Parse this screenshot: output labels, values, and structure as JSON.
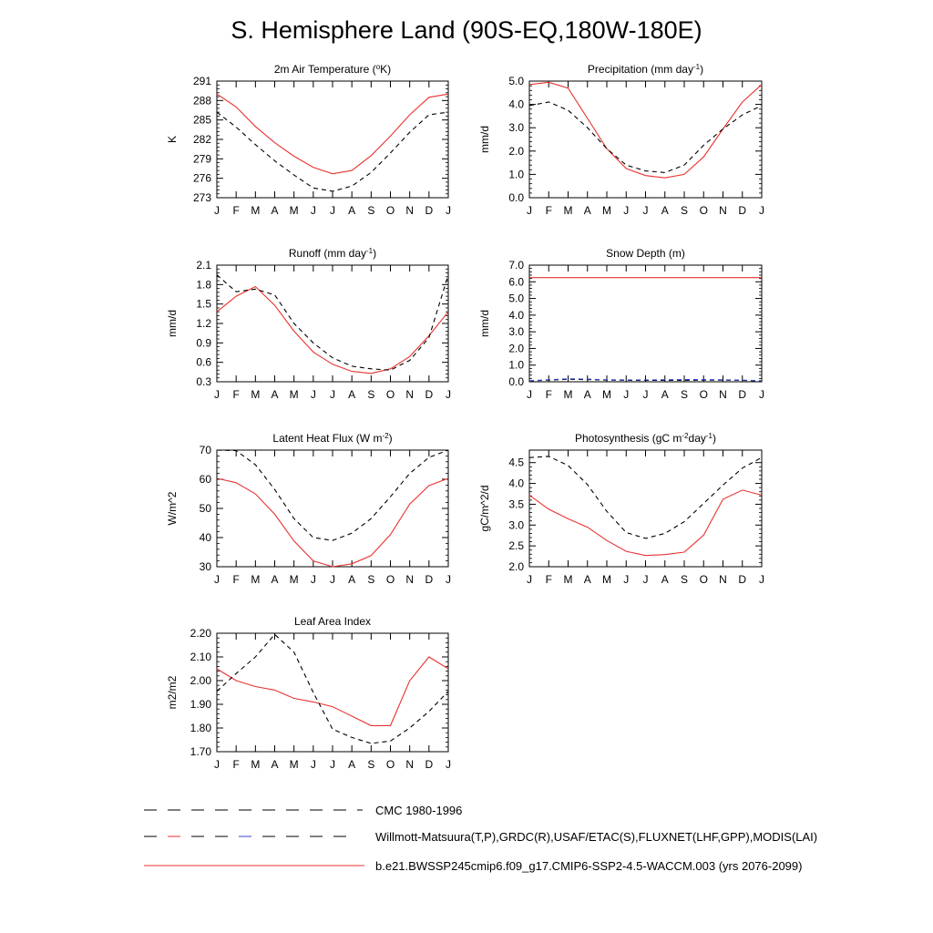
{
  "title": "S. Hemisphere Land (90S-EQ,180W-180E)",
  "months": [
    "J",
    "F",
    "M",
    "A",
    "M",
    "J",
    "J",
    "A",
    "S",
    "O",
    "N",
    "D",
    "J"
  ],
  "colors": {
    "model": "#e8322f",
    "obs": "#000000",
    "obs_blue": "#3344cc"
  },
  "legend": [
    {
      "label": "CMC 1980-1996",
      "style": "dashed-black"
    },
    {
      "label": "Willmott-Matsuura(T,P),GRDC(R),USAF/ETAC(S),FLUXNET(LHF,GPP),MODIS(LAI)",
      "style": "dashed-multicolor"
    },
    {
      "label": "b.e21.BWSSP245cmip6.f09_g17.CMIP6-SSP2-4.5-WACCM.003 (yrs 2076-2099)",
      "style": "solid-red"
    }
  ],
  "chart_data": [
    {
      "type": "line",
      "title_parts": [
        "2m Air Temperature (",
        "o",
        "K)"
      ],
      "ylabel": "K",
      "ylim": [
        273,
        291
      ],
      "yticks": [
        "273",
        "276",
        "279",
        "282",
        "285",
        "288",
        "291"
      ],
      "categories": [
        "J",
        "F",
        "M",
        "A",
        "M",
        "J",
        "J",
        "A",
        "S",
        "O",
        "N",
        "D",
        "J"
      ],
      "series": [
        {
          "role": "model",
          "values": [
            289.0,
            287.0,
            284.0,
            281.5,
            279.4,
            277.7,
            276.7,
            277.2,
            279.5,
            282.5,
            285.8,
            288.5,
            289.0
          ]
        },
        {
          "role": "obs",
          "values": [
            286.2,
            283.9,
            281.2,
            278.7,
            276.5,
            274.5,
            274.0,
            274.8,
            276.9,
            279.9,
            283.1,
            285.8,
            286.2
          ]
        }
      ]
    },
    {
      "type": "line",
      "title_parts": [
        "Precipitation (mm day",
        "-1",
        ")"
      ],
      "ylabel": "mm/d",
      "ylim": [
        0,
        5
      ],
      "yticks": [
        "0.0",
        "1.0",
        "2.0",
        "3.0",
        "4.0",
        "5.0"
      ],
      "categories": [
        "J",
        "F",
        "M",
        "A",
        "M",
        "J",
        "J",
        "A",
        "S",
        "O",
        "N",
        "D",
        "J"
      ],
      "series": [
        {
          "role": "model",
          "values": [
            4.85,
            4.95,
            4.7,
            3.4,
            2.1,
            1.25,
            0.95,
            0.85,
            1.0,
            1.75,
            2.95,
            4.1,
            4.85
          ]
        },
        {
          "role": "obs",
          "values": [
            3.95,
            4.1,
            3.75,
            3.0,
            2.1,
            1.4,
            1.15,
            1.08,
            1.4,
            2.25,
            2.95,
            3.55,
            3.95
          ]
        }
      ]
    },
    {
      "type": "line",
      "title_parts": [
        "Runoff (mm day",
        "-1",
        ")"
      ],
      "ylabel": "mm/d",
      "ylim": [
        0.3,
        2.1
      ],
      "yticks": [
        "0.3",
        "0.6",
        "0.9",
        "1.2",
        "1.5",
        "1.8",
        "2.1"
      ],
      "categories": [
        "J",
        "F",
        "M",
        "A",
        "M",
        "J",
        "J",
        "A",
        "S",
        "O",
        "N",
        "D",
        "J"
      ],
      "series": [
        {
          "role": "model",
          "values": [
            1.38,
            1.62,
            1.77,
            1.48,
            1.08,
            0.76,
            0.57,
            0.46,
            0.43,
            0.5,
            0.69,
            1.01,
            1.38
          ]
        },
        {
          "role": "obs",
          "values": [
            1.95,
            1.69,
            1.73,
            1.64,
            1.2,
            0.9,
            0.67,
            0.54,
            0.5,
            0.48,
            0.63,
            0.98,
            1.95
          ]
        }
      ]
    },
    {
      "type": "line",
      "title_parts": [
        "Snow Depth (m)"
      ],
      "ylabel": "mm/d",
      "ylim": [
        0,
        7
      ],
      "yticks": [
        "0.0",
        "1.0",
        "2.0",
        "3.0",
        "4.0",
        "5.0",
        "6.0",
        "7.0"
      ],
      "categories": [
        "J",
        "F",
        "M",
        "A",
        "M",
        "J",
        "J",
        "A",
        "S",
        "O",
        "N",
        "D",
        "J"
      ],
      "series": [
        {
          "role": "model",
          "values": [
            6.25,
            6.25,
            6.25,
            6.25,
            6.25,
            6.25,
            6.25,
            6.25,
            6.25,
            6.25,
            6.25,
            6.25,
            6.25
          ]
        },
        {
          "role": "obs",
          "values": [
            0.05,
            0.1,
            0.15,
            0.13,
            0.1,
            0.09,
            0.08,
            0.08,
            0.09,
            0.1,
            0.1,
            0.08,
            0.05
          ]
        },
        {
          "role": "obs_blue",
          "values": [
            0.06,
            0.12,
            0.18,
            0.16,
            0.12,
            0.11,
            0.11,
            0.12,
            0.13,
            0.13,
            0.12,
            0.1,
            0.06
          ]
        }
      ]
    },
    {
      "type": "line",
      "title_parts": [
        "Latent Heat Flux (W m",
        "-2",
        ")"
      ],
      "ylabel": "W/m^2",
      "ylim": [
        30,
        70
      ],
      "yticks": [
        "30",
        "40",
        "50",
        "60",
        "70"
      ],
      "categories": [
        "J",
        "F",
        "M",
        "A",
        "M",
        "J",
        "J",
        "A",
        "S",
        "O",
        "N",
        "D",
        "J"
      ],
      "series": [
        {
          "role": "model",
          "values": [
            60.3,
            58.8,
            55.0,
            48.0,
            38.8,
            32.0,
            30.0,
            31.0,
            33.8,
            41.0,
            51.5,
            57.8,
            60.3
          ]
        },
        {
          "role": "obs",
          "values": [
            70.0,
            69.8,
            65.0,
            56.5,
            46.5,
            40.0,
            39.0,
            41.5,
            46.5,
            54.0,
            62.0,
            67.5,
            70.0
          ]
        }
      ]
    },
    {
      "type": "line",
      "title_parts": [
        "Photosynthesis (gC m",
        "-2",
        "day",
        "-1",
        ")"
      ],
      "ylabel": "gC/m^2/d",
      "ylim": [
        2.0,
        4.8
      ],
      "yticks": [
        "2.0",
        "2.5",
        "3.0",
        "3.5",
        "4.0",
        "4.5"
      ],
      "categories": [
        "J",
        "F",
        "M",
        "A",
        "M",
        "J",
        "J",
        "A",
        "S",
        "O",
        "N",
        "D",
        "J"
      ],
      "series": [
        {
          "role": "model",
          "values": [
            3.72,
            3.38,
            3.15,
            2.95,
            2.63,
            2.37,
            2.27,
            2.29,
            2.35,
            2.76,
            3.62,
            3.84,
            3.72
          ]
        },
        {
          "role": "obs",
          "values": [
            4.62,
            4.65,
            4.43,
            3.97,
            3.33,
            2.82,
            2.68,
            2.8,
            3.08,
            3.52,
            3.96,
            4.37,
            4.62
          ]
        }
      ]
    },
    {
      "type": "line",
      "title_parts": [
        "Leaf Area Index"
      ],
      "ylabel": "m2/m2",
      "ylim": [
        1.7,
        2.2
      ],
      "yticks": [
        "1.70",
        "1.80",
        "1.90",
        "2.00",
        "2.10",
        "2.20"
      ],
      "categories": [
        "J",
        "F",
        "M",
        "A",
        "M",
        "J",
        "J",
        "A",
        "S",
        "O",
        "N",
        "D",
        "J"
      ],
      "series": [
        {
          "role": "model",
          "values": [
            2.05,
            2.0,
            1.975,
            1.96,
            1.925,
            1.91,
            1.89,
            1.85,
            1.81,
            1.81,
            2.0,
            2.1,
            2.05
          ]
        },
        {
          "role": "obs",
          "values": [
            1.955,
            2.03,
            2.1,
            2.195,
            2.12,
            1.95,
            1.795,
            1.76,
            1.735,
            1.745,
            1.8,
            1.87,
            1.955
          ]
        }
      ]
    }
  ]
}
